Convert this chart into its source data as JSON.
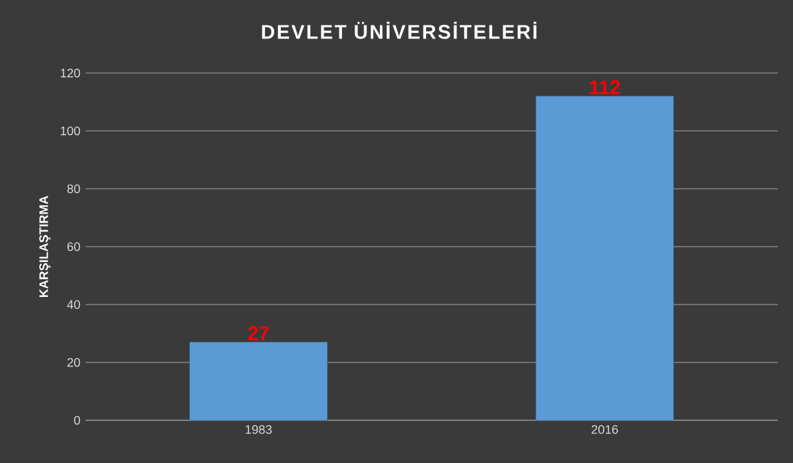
{
  "chart_data": {
    "type": "bar",
    "title": "DEVLET ÜNİVERSİTELERİ",
    "ylabel": "KARŞILAŞTIRMA",
    "categories": [
      "1983",
      "2016"
    ],
    "values": [
      27,
      112
    ],
    "color": "#5b9bd5",
    "ylim": [
      0,
      120
    ],
    "yticks": [
      0,
      20,
      40,
      60,
      80,
      100,
      120
    ],
    "grid": "y",
    "data_labels": true
  }
}
